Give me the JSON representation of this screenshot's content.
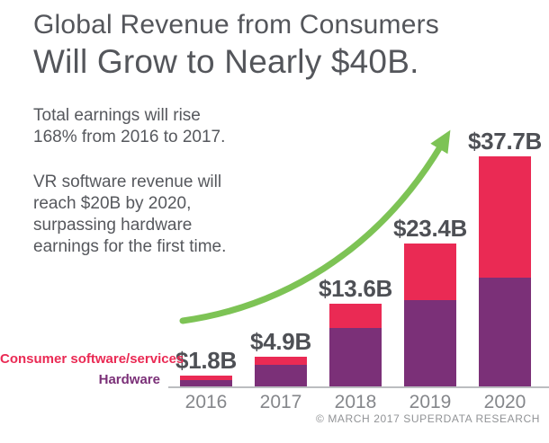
{
  "title": {
    "line1": "Global Revenue from Consumers",
    "line2": "Will Grow to Nearly $40B."
  },
  "annotations": {
    "para1": "Total earnings will rise\n168% from 2016 to 2017.",
    "para2": "VR software revenue will\nreach $20B by 2020,\nsurpassing hardware\nearnings for the first time."
  },
  "legend": [
    {
      "label": "Consumer software/services",
      "color": "#EA2A54"
    },
    {
      "label": "Hardware",
      "color": "#7B3078"
    }
  ],
  "footer": "© MARCH 2017 SUPERDATA RESEARCH",
  "colors": {
    "software_red": "#EA2A54",
    "hardware_purple": "#7B3078",
    "arrow_green": "#7DC355",
    "text_dark": "#54565B",
    "year_gray": "#85878B",
    "axis_gray": "#BBBDC0"
  },
  "chart_data": {
    "type": "bar",
    "stacked": true,
    "categories": [
      "2016",
      "2017",
      "2018",
      "2019",
      "2020"
    ],
    "series": [
      {
        "name": "Hardware",
        "color": "#7B3078",
        "values": [
          1.1,
          3.6,
          9.6,
          14.1,
          17.8
        ]
      },
      {
        "name": "Consumer software/services",
        "color": "#EA2A54",
        "values": [
          0.7,
          1.3,
          4.0,
          9.3,
          19.9
        ]
      }
    ],
    "totals_labels": [
      "$1.8B",
      "$4.9B",
      "$13.6B",
      "$23.4B",
      "$37.7B"
    ],
    "total_values": [
      1.8,
      4.9,
      13.6,
      23.4,
      37.7
    ],
    "unit": "billion USD",
    "ylim": [
      0,
      40
    ],
    "grid": false,
    "legend_position": "left of first bar",
    "annotation": "curved green growth arrow rising left-to-right over bars"
  }
}
